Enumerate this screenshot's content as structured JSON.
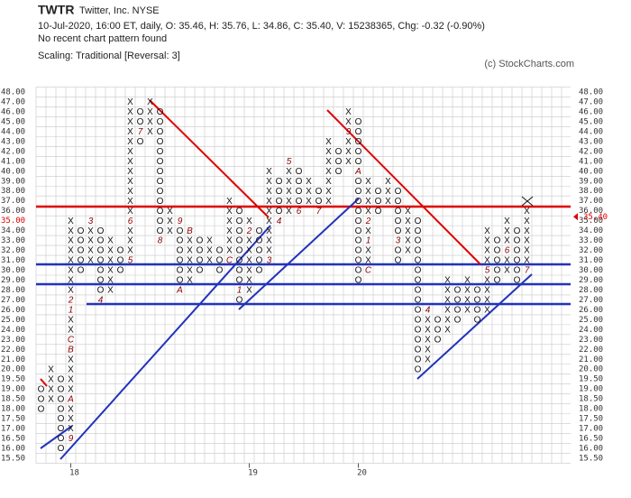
{
  "chart_data": {
    "type": "pnf",
    "title": "TWTR",
    "subtitle": "Twitter, Inc.  NYSE",
    "info": "10-Jul-2020, 16:00 ET, daily, O: 35.46, H: 35.76, L: 34.86, C: 35.40, V: 15238365, Chg: -0.32 (-0.90%)",
    "pattern_note": "No recent chart pattern found",
    "scaling": "Scaling: Traditional [Reversal: 3]",
    "credit": "(c) StockCharts.com",
    "current_box": 35,
    "last": {
      "value": 35.4,
      "label": "35.40"
    },
    "ylim": [
      15.5,
      48
    ],
    "yticks": [
      {
        "value": 48,
        "label": "48.00"
      },
      {
        "value": 47,
        "label": "47.00"
      },
      {
        "value": 46,
        "label": "46.00"
      },
      {
        "value": 45,
        "label": "45.00"
      },
      {
        "value": 44,
        "label": "44.00"
      },
      {
        "value": 43,
        "label": "43.00"
      },
      {
        "value": 42,
        "label": "42.00"
      },
      {
        "value": 41,
        "label": "41.00"
      },
      {
        "value": 40,
        "label": "40.00"
      },
      {
        "value": 39,
        "label": "39.00"
      },
      {
        "value": 38,
        "label": "38.00"
      },
      {
        "value": 37,
        "label": "37.00"
      },
      {
        "value": 36,
        "label": "36.00"
      },
      {
        "value": 35,
        "label": "35.00"
      },
      {
        "value": 34,
        "label": "34.00"
      },
      {
        "value": 33,
        "label": "33.00"
      },
      {
        "value": 32,
        "label": "32.00"
      },
      {
        "value": 31,
        "label": "31.00"
      },
      {
        "value": 30,
        "label": "30.00"
      },
      {
        "value": 29,
        "label": "29.00"
      },
      {
        "value": 28,
        "label": "28.00"
      },
      {
        "value": 27,
        "label": "27.00"
      },
      {
        "value": 26,
        "label": "26.00"
      },
      {
        "value": 25,
        "label": "25.00"
      },
      {
        "value": 24,
        "label": "24.00"
      },
      {
        "value": 23,
        "label": "23.00"
      },
      {
        "value": 22,
        "label": "22.00"
      },
      {
        "value": 21,
        "label": "21.00"
      },
      {
        "value": 20,
        "label": "20.00"
      },
      {
        "value": 19.5,
        "label": "19.50"
      },
      {
        "value": 19,
        "label": "19.00"
      },
      {
        "value": 18.5,
        "label": "18.50"
      },
      {
        "value": 18,
        "label": "18.00"
      },
      {
        "value": 17.5,
        "label": "17.50"
      },
      {
        "value": 17,
        "label": "17.00"
      },
      {
        "value": 16.5,
        "label": "16.50"
      },
      {
        "value": 16,
        "label": "16.00"
      },
      {
        "value": 15.5,
        "label": "15.50"
      }
    ],
    "columns": [
      {
        "kind": "O",
        "low": 18,
        "high": 19
      },
      {
        "kind": "X",
        "low": 18.5,
        "high": 20
      },
      {
        "kind": "O",
        "low": 16,
        "high": 19.5
      },
      {
        "kind": "X",
        "low": 16.5,
        "high": 35,
        "year": "18",
        "months": [
          {
            "label": "9",
            "value": 16.5
          },
          {
            "label": "A",
            "value": 18.5
          },
          {
            "label": "B",
            "value": 22
          },
          {
            "label": "C",
            "value": 23
          },
          {
            "label": "1",
            "value": 26
          },
          {
            "label": "2",
            "value": 27
          }
        ]
      },
      {
        "kind": "O",
        "low": 30,
        "high": 34
      },
      {
        "kind": "X",
        "low": 31,
        "high": 35,
        "months": [
          {
            "label": "3",
            "value": 35
          }
        ]
      },
      {
        "kind": "O",
        "low": 27,
        "high": 34,
        "months": [
          {
            "label": "4",
            "value": 27
          }
        ]
      },
      {
        "kind": "X",
        "low": 28,
        "high": 33
      },
      {
        "kind": "O",
        "low": 30,
        "high": 32
      },
      {
        "kind": "X",
        "low": 31,
        "high": 47,
        "months": [
          {
            "label": "5",
            "value": 31
          },
          {
            "label": "6",
            "value": 35
          }
        ]
      },
      {
        "kind": "O",
        "low": 43,
        "high": 46,
        "months": [
          {
            "label": "7",
            "value": 44
          }
        ]
      },
      {
        "kind": "X",
        "low": 44,
        "high": 47
      },
      {
        "kind": "O",
        "low": 33,
        "high": 46,
        "months": [
          {
            "label": "8",
            "value": 33
          }
        ]
      },
      {
        "kind": "X",
        "low": 34,
        "high": 36
      },
      {
        "kind": "O",
        "low": 28,
        "high": 35,
        "months": [
          {
            "label": "9",
            "value": 35
          },
          {
            "label": "A",
            "value": 28
          }
        ]
      },
      {
        "kind": "X",
        "low": 29,
        "high": 34,
        "months": [
          {
            "label": "B",
            "value": 34
          }
        ]
      },
      {
        "kind": "O",
        "low": 30,
        "high": 33
      },
      {
        "kind": "X",
        "low": 31,
        "high": 33
      },
      {
        "kind": "O",
        "low": 30,
        "high": 32
      },
      {
        "kind": "X",
        "low": 31,
        "high": 37,
        "months": [
          {
            "label": "C",
            "value": 31
          }
        ]
      },
      {
        "kind": "O",
        "low": 27,
        "high": 36,
        "months": [
          {
            "label": "1",
            "value": 28
          }
        ]
      },
      {
        "kind": "X",
        "low": 28,
        "high": 35,
        "year": "19",
        "months": [
          {
            "label": "2",
            "value": 34
          }
        ]
      },
      {
        "kind": "O",
        "low": 30,
        "high": 34
      },
      {
        "kind": "X",
        "low": 31,
        "high": 40,
        "months": [
          {
            "label": "3",
            "value": 31
          }
        ]
      },
      {
        "kind": "O",
        "low": 35,
        "high": 39,
        "months": [
          {
            "label": "4",
            "value": 35
          }
        ]
      },
      {
        "kind": "X",
        "low": 36,
        "high": 41,
        "months": [
          {
            "label": "5",
            "value": 41
          }
        ]
      },
      {
        "kind": "O",
        "low": 36,
        "high": 40,
        "months": [
          {
            "label": "6",
            "value": 36
          }
        ]
      },
      {
        "kind": "X",
        "low": 37,
        "high": 39
      },
      {
        "kind": "O",
        "low": 36,
        "high": 38,
        "months": [
          {
            "label": "7",
            "value": 36
          }
        ]
      },
      {
        "kind": "X",
        "low": 37,
        "high": 43
      },
      {
        "kind": "O",
        "low": 40,
        "high": 42
      },
      {
        "kind": "X",
        "low": 41,
        "high": 46,
        "months": [
          {
            "label": "9",
            "value": 44
          }
        ]
      },
      {
        "kind": "O",
        "low": 29,
        "high": 45,
        "year": "20",
        "months": [
          {
            "label": "A",
            "value": 40
          }
        ]
      },
      {
        "kind": "X",
        "low": 30,
        "high": 39,
        "months": [
          {
            "label": "C",
            "value": 30
          },
          {
            "label": "1",
            "value": 33
          },
          {
            "label": "2",
            "value": 35
          }
        ]
      },
      {
        "kind": "O",
        "low": 36,
        "high": 38
      },
      {
        "kind": "X",
        "low": 37,
        "high": 39
      },
      {
        "kind": "O",
        "low": 31,
        "high": 38,
        "months": [
          {
            "label": "3",
            "value": 33
          }
        ]
      },
      {
        "kind": "X",
        "low": 32,
        "high": 36
      },
      {
        "kind": "O",
        "low": 20,
        "high": 35
      },
      {
        "kind": "X",
        "low": 21,
        "high": 26,
        "months": [
          {
            "label": "4",
            "value": 26
          }
        ]
      },
      {
        "kind": "O",
        "low": 23,
        "high": 25
      },
      {
        "kind": "X",
        "low": 24,
        "high": 29
      },
      {
        "kind": "O",
        "low": 25,
        "high": 28
      },
      {
        "kind": "X",
        "low": 26,
        "high": 29
      },
      {
        "kind": "O",
        "low": 25,
        "high": 28
      },
      {
        "kind": "X",
        "low": 26,
        "high": 34,
        "months": [
          {
            "label": "5",
            "value": 30
          }
        ]
      },
      {
        "kind": "O",
        "low": 29,
        "high": 33
      },
      {
        "kind": "X",
        "low": 30,
        "high": 35,
        "months": [
          {
            "label": "6",
            "value": 32
          }
        ]
      },
      {
        "kind": "O",
        "low": 29,
        "high": 34
      },
      {
        "kind": "X",
        "low": 30,
        "high": 36,
        "months": [
          {
            "label": "7",
            "value": 30
          }
        ]
      }
    ]
  }
}
